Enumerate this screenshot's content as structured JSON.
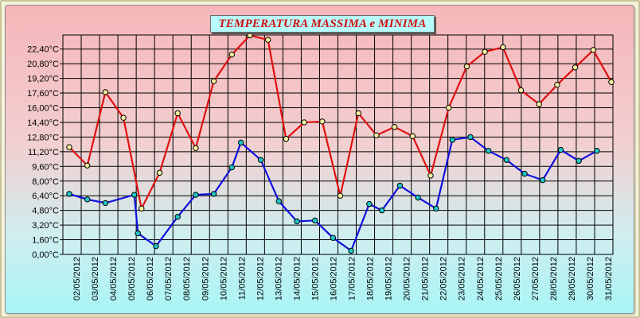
{
  "chart_data": {
    "type": "line",
    "title": "TEMPERATURA MASSIMA e MINIMA",
    "xlabel": "",
    "ylabel": "",
    "ylim": [
      0,
      24
    ],
    "y_ticks": [
      "0,00°C",
      "1,60°C",
      "3,20°C",
      "4,80°C",
      "6,40°C",
      "8,00°C",
      "9,60°C",
      "11,20°C",
      "12,80°C",
      "14,40°C",
      "16,00°C",
      "17,60°C",
      "19,20°C",
      "20,80°C",
      "22,40°C"
    ],
    "grid": true,
    "categories": [
      "02/05/2012",
      "03/05/2012",
      "04/05/2012",
      "05/05/2012",
      "06/05/2012",
      "07/05/2012",
      "08/05/2012",
      "09/05/2012",
      "10/05/2012",
      "11/05/2012",
      "12/05/2012",
      "13/05/2012",
      "14/05/2012",
      "15/05/2012",
      "16/05/2012",
      "17/05/2012",
      "18/05/2012",
      "19/05/2012",
      "20/05/2012",
      "21/05/2012",
      "22/05/2012",
      "23/05/2012",
      "24/05/2012",
      "25/05/2012",
      "26/05/2012",
      "27/05/2012",
      "28/05/2012",
      "29/05/2012",
      "30/05/2012",
      "31/05/2012"
    ],
    "series": [
      {
        "color": "#e01010",
        "marker_color": "#f5f0a0",
        "points": [
          {
            "x": 0.0,
            "y": 11.7
          },
          {
            "x": 1.0,
            "y": 9.7
          },
          {
            "x": 2.0,
            "y": 17.7
          },
          {
            "x": 3.0,
            "y": 14.9
          },
          {
            "x": 4.0,
            "y": 5.0
          },
          {
            "x": 5.0,
            "y": 8.9
          },
          {
            "x": 6.0,
            "y": 15.4
          },
          {
            "x": 7.0,
            "y": 11.6
          },
          {
            "x": 8.0,
            "y": 18.9
          },
          {
            "x": 9.0,
            "y": 21.8
          },
          {
            "x": 10.0,
            "y": 23.9
          },
          {
            "x": 11.0,
            "y": 23.4
          },
          {
            "x": 12.0,
            "y": 12.6
          },
          {
            "x": 13.0,
            "y": 14.4
          },
          {
            "x": 14.0,
            "y": 14.5
          },
          {
            "x": 15.0,
            "y": 6.4
          },
          {
            "x": 16.0,
            "y": 15.4
          },
          {
            "x": 17.0,
            "y": 13.0
          },
          {
            "x": 18.0,
            "y": 13.9
          },
          {
            "x": 19.0,
            "y": 12.9
          },
          {
            "x": 20.0,
            "y": 8.6
          },
          {
            "x": 21.0,
            "y": 16.0
          },
          {
            "x": 22.0,
            "y": 20.5
          },
          {
            "x": 23.0,
            "y": 22.1
          },
          {
            "x": 24.0,
            "y": 22.6
          },
          {
            "x": 25.0,
            "y": 17.9
          },
          {
            "x": 26.0,
            "y": 16.4
          },
          {
            "x": 27.0,
            "y": 18.5
          },
          {
            "x": 28.0,
            "y": 20.4
          },
          {
            "x": 29.0,
            "y": 22.3
          },
          {
            "x": 30.0,
            "y": 18.8
          }
        ]
      },
      {
        "color": "#1010dd",
        "marker_color": "#20c8c8",
        "points": [
          {
            "x": 0.0,
            "y": 6.6
          },
          {
            "x": 1.0,
            "y": 6.0
          },
          {
            "x": 2.0,
            "y": 5.6
          },
          {
            "x": 3.6,
            "y": 6.5
          },
          {
            "x": 3.8,
            "y": 2.3
          },
          {
            "x": 4.8,
            "y": 0.9
          },
          {
            "x": 6.0,
            "y": 4.1
          },
          {
            "x": 7.0,
            "y": 6.5
          },
          {
            "x": 8.0,
            "y": 6.6
          },
          {
            "x": 9.0,
            "y": 9.5
          },
          {
            "x": 9.5,
            "y": 12.2
          },
          {
            "x": 10.6,
            "y": 10.3
          },
          {
            "x": 11.6,
            "y": 5.8
          },
          {
            "x": 12.6,
            "y": 3.6
          },
          {
            "x": 13.6,
            "y": 3.7
          },
          {
            "x": 14.6,
            "y": 1.8
          },
          {
            "x": 15.6,
            "y": 0.4
          },
          {
            "x": 16.6,
            "y": 5.5
          },
          {
            "x": 17.3,
            "y": 4.8
          },
          {
            "x": 18.3,
            "y": 7.5
          },
          {
            "x": 19.3,
            "y": 6.2
          },
          {
            "x": 20.3,
            "y": 5.0
          },
          {
            "x": 21.2,
            "y": 12.5
          },
          {
            "x": 22.2,
            "y": 12.8
          },
          {
            "x": 23.2,
            "y": 11.3
          },
          {
            "x": 24.2,
            "y": 10.3
          },
          {
            "x": 25.2,
            "y": 8.8
          },
          {
            "x": 26.2,
            "y": 8.1
          },
          {
            "x": 27.2,
            "y": 11.4
          },
          {
            "x": 28.2,
            "y": 10.2
          },
          {
            "x": 29.2,
            "y": 11.3
          }
        ]
      }
    ]
  }
}
